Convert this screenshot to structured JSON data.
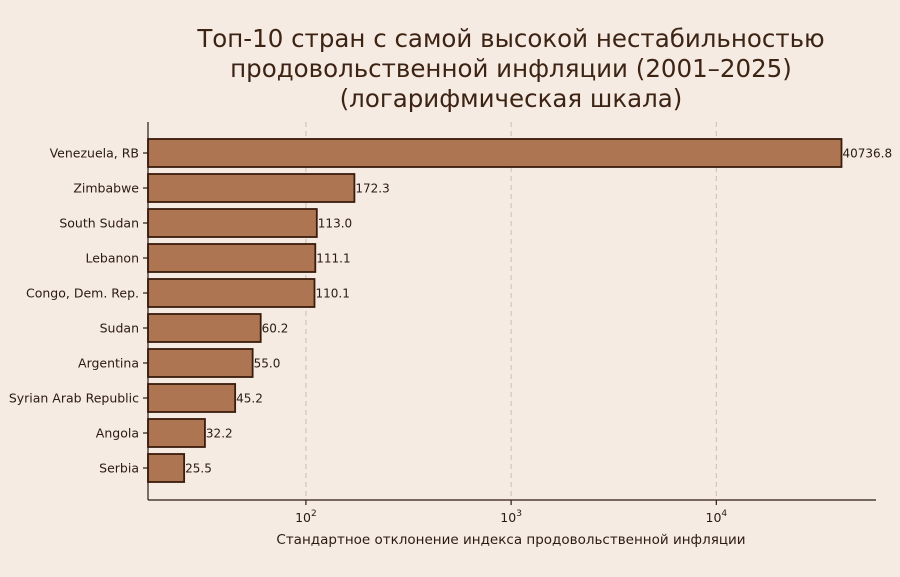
{
  "chart_data": {
    "type": "bar",
    "orientation": "horizontal",
    "title_lines": [
      "Топ-10 стран с самой высокой нестабильностью",
      "продовольственной инфляции (2001–2025)",
      "(логарифмическая шкала)"
    ],
    "xlabel": "Стандартное отклонение индекса продовольственной инфляции",
    "ylabel": "",
    "xscale": "log",
    "xlim": [
      17,
      60000
    ],
    "categories": [
      "Venezuela, RB",
      "Zimbabwe",
      "South Sudan",
      "Lebanon",
      "Congo, Dem. Rep.",
      "Sudan",
      "Argentina",
      "Syrian Arab Republic",
      "Angola",
      "Serbia"
    ],
    "values": [
      40736.8,
      172.3,
      113.0,
      111.1,
      110.1,
      60.2,
      55.0,
      45.2,
      32.2,
      25.5
    ],
    "value_labels": [
      "40736.8",
      "172.3",
      "113.0",
      "111.1",
      "110.1",
      "60.2",
      "55.0",
      "45.2",
      "32.2",
      "25.5"
    ],
    "x_ticks": [
      {
        "value": 100,
        "base": "10",
        "exp": "2"
      },
      {
        "value": 1000,
        "base": "10",
        "exp": "3"
      },
      {
        "value": 10000,
        "base": "10",
        "exp": "4"
      }
    ],
    "grid": "x",
    "colors": {
      "bar_fill": "#ad7551",
      "bar_edge": "#3a1b0c",
      "background": "#f5ebe3",
      "title": "#3d2313"
    }
  }
}
